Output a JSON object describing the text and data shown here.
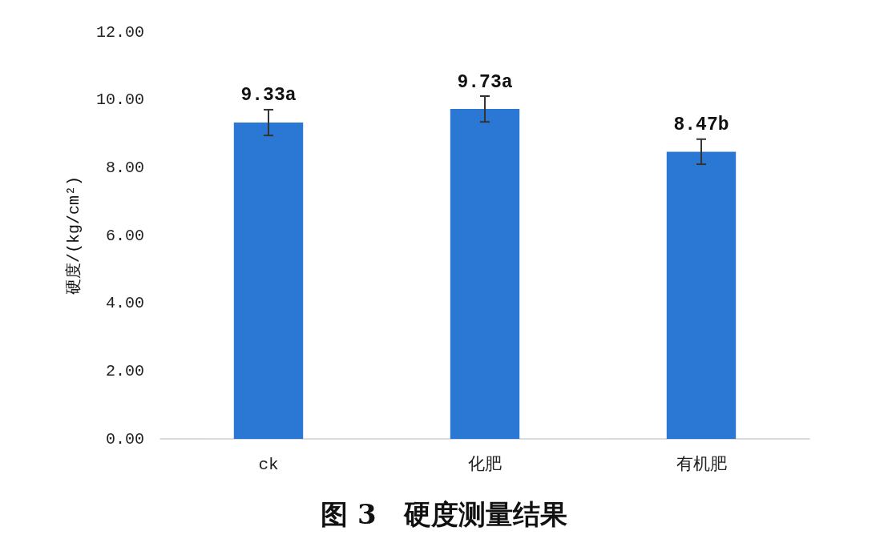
{
  "chart_data": {
    "type": "bar",
    "title": "图 3　硬度测量结果",
    "ylabel": "硬度/(kg/cm²)",
    "categories": [
      "ck",
      "化肥",
      "有机肥"
    ],
    "values": [
      9.33,
      9.73,
      8.47
    ],
    "errors": [
      0.38,
      0.38,
      0.37
    ],
    "value_labels": [
      "9.33a",
      "9.73a",
      "8.47b"
    ],
    "color": "#2b78d4",
    "ylim": [
      0,
      12
    ],
    "yticks": [
      {
        "value": 0,
        "label": "0.00"
      },
      {
        "value": 2,
        "label": "2.00"
      },
      {
        "value": 4,
        "label": "4.00"
      },
      {
        "value": 6,
        "label": "6.00"
      },
      {
        "value": 8,
        "label": "8.00"
      },
      {
        "value": 10,
        "label": "10.00"
      },
      {
        "value": 12,
        "label": "12.00"
      }
    ],
    "grid": false
  }
}
